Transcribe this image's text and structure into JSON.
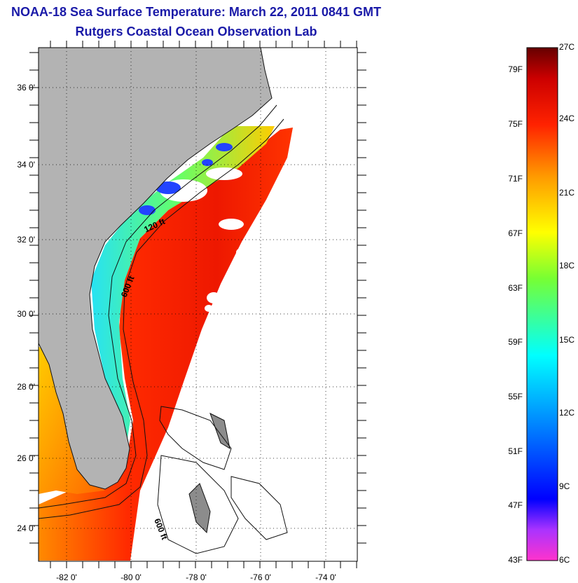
{
  "title": "NOAA-18 Sea Surface Temperature:  March 22, 2011 0841 GMT",
  "subtitle": "Rutgers Coastal Ocean Observation Lab",
  "map": {
    "lon_ticks": [
      "-82 0'",
      "-80 0'",
      "-78 0'",
      "-76 0'",
      "-74 0'"
    ],
    "lat_ticks": [
      "36 0'",
      "34 0'",
      "32 0'",
      "30 0'",
      "28 0'",
      "26 0'",
      "24 0'"
    ],
    "contour_labels": [
      "120 ft",
      "600 ft",
      "600 ft"
    ],
    "colors": {
      "land": "#b3b3b3",
      "warm": "#ff2200",
      "cool": "#22d8ff"
    }
  },
  "colorbar": {
    "fahrenheit": [
      "79F",
      "75F",
      "71F",
      "67F",
      "63F",
      "59F",
      "55F",
      "51F",
      "47F",
      "43F"
    ],
    "celsius": [
      "27C",
      "24C",
      "21C",
      "18C",
      "15C",
      "12C",
      "9C",
      "6C"
    ]
  }
}
